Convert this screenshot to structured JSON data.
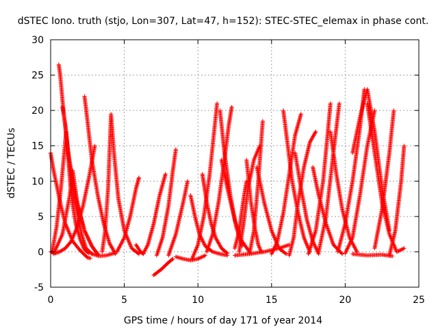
{
  "chart_data": {
    "type": "scatter",
    "title": "dSTEC Iono. truth (stjo, Lon=307, Lat=47, h=152): STEC-STEC_elemax in phase cont.",
    "xlabel": "GPS time / hours of day 171 of year 2014",
    "ylabel": "dSTEC  / TECUs",
    "xlim": [
      0,
      25
    ],
    "ylim": [
      -5,
      30
    ],
    "xticks": [
      0,
      5,
      10,
      15,
      20,
      25
    ],
    "yticks": [
      -5,
      0,
      5,
      10,
      15,
      20,
      25,
      30
    ],
    "grid": true,
    "marker": "+",
    "color": "#ff0000",
    "series": [
      {
        "x": [
          0.0,
          0.2,
          0.45,
          0.7,
          1.0,
          1.5,
          2.0,
          2.5,
          2.7
        ],
        "y": [
          14.0,
          11.5,
          9.0,
          6.5,
          4.0,
          1.5,
          0.2,
          -0.8,
          -0.9
        ]
      },
      {
        "x": [
          0.0,
          0.3,
          0.6,
          1.0,
          1.4,
          1.8,
          2.2,
          2.6,
          3.0
        ],
        "y": [
          0.0,
          -0.2,
          0.0,
          0.5,
          1.5,
          3.5,
          6.5,
          10.5,
          15.0
        ]
      },
      {
        "x": [
          0.55,
          0.65,
          0.8,
          1.0,
          1.25,
          1.5,
          1.8,
          2.1,
          2.4,
          2.8
        ],
        "y": [
          26.5,
          25.0,
          21.5,
          17.5,
          13.0,
          9.0,
          5.5,
          2.5,
          0.5,
          -0.3
        ]
      },
      {
        "x": [
          0.2,
          0.8,
          1.3,
          1.5,
          1.8,
          2.3,
          2.8,
          3.2
        ],
        "y": [
          -0.3,
          2.5,
          8.0,
          11.5,
          7.0,
          3.0,
          0.8,
          -0.4
        ]
      },
      {
        "x": [
          0.8,
          1.0,
          1.2,
          1.5,
          1.9,
          2.3,
          2.8,
          3.2
        ],
        "y": [
          20.5,
          18.0,
          14.0,
          10.0,
          6.0,
          3.0,
          0.8,
          -0.3
        ]
      },
      {
        "x": [
          0.1,
          0.4,
          0.7,
          0.9,
          1.05,
          1.2,
          1.4,
          1.7,
          2.0,
          2.3,
          2.6
        ],
        "y": [
          0.0,
          3.5,
          9.0,
          13.5,
          17.0,
          13.0,
          8.0,
          4.0,
          1.8,
          0.3,
          -0.2
        ]
      },
      {
        "x": [
          2.3,
          2.5,
          2.8,
          3.2,
          3.6,
          4.0,
          4.4
        ],
        "y": [
          22.0,
          18.5,
          13.0,
          8.0,
          4.0,
          1.2,
          -0.3
        ]
      },
      {
        "x": [
          3.5,
          3.7,
          3.9,
          4.1,
          4.3,
          4.6,
          5.0,
          5.5,
          6.0
        ],
        "y": [
          0.0,
          3.0,
          9.0,
          19.5,
          14.0,
          7.5,
          3.0,
          0.5,
          -0.3
        ]
      },
      {
        "x": [
          2.8,
          3.3,
          3.8,
          4.3
        ],
        "y": [
          -0.3,
          -0.6,
          -0.5,
          -0.2
        ]
      },
      {
        "x": [
          4.5,
          5.0,
          5.4,
          5.8,
          6.0
        ],
        "y": [
          0.0,
          2.0,
          5.0,
          9.0,
          10.5
        ]
      },
      {
        "x": [
          5.8,
          6.1,
          6.3
        ],
        "y": [
          1.0,
          0.0,
          -0.3
        ]
      },
      {
        "x": [
          6.3,
          6.6,
          7.0,
          7.4,
          7.8
        ],
        "y": [
          -0.2,
          1.0,
          4.0,
          8.0,
          11.0
        ]
      },
      {
        "x": [
          7.0,
          7.5,
          8.0,
          8.3
        ],
        "y": [
          -3.3,
          -2.5,
          -1.5,
          -1.0
        ]
      },
      {
        "x": [
          7.2,
          7.6,
          8.0,
          8.3,
          8.5
        ],
        "y": [
          -0.5,
          2.0,
          6.5,
          11.5,
          14.5
        ]
      },
      {
        "x": [
          8.0,
          8.5,
          9.0,
          9.3
        ],
        "y": [
          -0.5,
          2.5,
          7.0,
          10.0
        ]
      },
      {
        "x": [
          8.5,
          9.0,
          9.5,
          10.0,
          10.5
        ],
        "y": [
          -0.7,
          -1.0,
          -1.2,
          -1.0,
          -0.5
        ]
      },
      {
        "x": [
          9.5,
          9.8,
          10.1,
          10.5,
          11.0,
          11.5,
          12.0
        ],
        "y": [
          8.0,
          5.0,
          2.5,
          0.8,
          0.0,
          -0.3,
          -0.5
        ]
      },
      {
        "x": [
          9.6,
          10.0,
          10.4,
          10.8,
          11.1,
          11.3
        ],
        "y": [
          -1.0,
          1.0,
          5.0,
          11.0,
          17.0,
          21.0
        ]
      },
      {
        "x": [
          10.3,
          10.6,
          10.9,
          11.2,
          11.6,
          12.0
        ],
        "y": [
          11.0,
          7.0,
          4.0,
          2.0,
          0.5,
          -0.2
        ]
      },
      {
        "x": [
          10.6,
          11.0,
          11.4,
          11.8,
          12.1,
          12.3
        ],
        "y": [
          0.0,
          2.5,
          7.0,
          13.0,
          18.0,
          20.5
        ]
      },
      {
        "x": [
          11.5,
          11.8,
          12.2,
          12.6,
          13.0
        ],
        "y": [
          20.0,
          14.0,
          8.0,
          3.5,
          0.8
        ]
      },
      {
        "x": [
          11.6,
          12.0,
          12.5,
          13.0,
          13.5
        ],
        "y": [
          13.0,
          9.0,
          4.5,
          1.5,
          0.0
        ]
      },
      {
        "x": [
          12.5,
          12.8,
          13.1,
          13.3
        ],
        "y": [
          0.5,
          3.0,
          7.5,
          10.0
        ]
      },
      {
        "x": [
          12.8,
          13.1,
          13.4,
          13.8,
          14.2
        ],
        "y": [
          0.0,
          4.0,
          9.0,
          13.0,
          15.0
        ]
      },
      {
        "x": [
          13.3,
          13.6,
          13.9,
          14.1,
          14.3
        ],
        "y": [
          13.0,
          7.0,
          3.0,
          1.0,
          0.0
        ]
      },
      {
        "x": [
          13.5,
          13.8,
          14.1,
          14.4
        ],
        "y": [
          -0.3,
          3.0,
          10.0,
          18.5
        ]
      },
      {
        "x": [
          14.0,
          14.5,
          15.0,
          15.5,
          16.0
        ],
        "y": [
          12.0,
          7.0,
          3.0,
          0.5,
          -0.3
        ]
      },
      {
        "x": [
          12.5,
          13.5,
          14.5,
          15.5,
          16.2
        ],
        "y": [
          -0.5,
          -0.3,
          0.0,
          0.5,
          1.0
        ]
      },
      {
        "x": [
          15.0,
          15.4,
          15.8,
          16.2,
          16.6,
          17.0
        ],
        "y": [
          -0.3,
          1.5,
          5.5,
          11.0,
          16.5,
          19.5
        ]
      },
      {
        "x": [
          15.8,
          16.1,
          16.4,
          16.8,
          17.2,
          17.6
        ],
        "y": [
          20.0,
          15.0,
          10.0,
          5.5,
          2.0,
          0.0
        ]
      },
      {
        "x": [
          16.2,
          16.5,
          16.8,
          17.2,
          17.6,
          18.0
        ],
        "y": [
          -0.5,
          2.0,
          7.0,
          12.0,
          15.5,
          17.0
        ]
      },
      {
        "x": [
          16.6,
          17.0,
          17.4,
          17.8,
          18.2
        ],
        "y": [
          14.0,
          9.0,
          4.5,
          1.5,
          -0.3
        ]
      },
      {
        "x": [
          17.5,
          18.0,
          18.5,
          18.8,
          19.0
        ],
        "y": [
          -0.3,
          3.0,
          10.0,
          16.5,
          21.0
        ]
      },
      {
        "x": [
          17.8,
          18.2,
          18.7,
          19.2,
          19.8
        ],
        "y": [
          12.0,
          8.0,
          4.0,
          1.0,
          -0.3
        ]
      },
      {
        "x": [
          18.2,
          18.7,
          19.2,
          19.6
        ],
        "y": [
          0.0,
          5.0,
          14.0,
          21.0
        ]
      },
      {
        "x": [
          19.0,
          19.4,
          19.8,
          20.3,
          20.8
        ],
        "y": [
          17.0,
          11.0,
          6.0,
          2.0,
          0.0
        ]
      },
      {
        "x": [
          19.5,
          20.0,
          20.5,
          21.0,
          21.3
        ],
        "y": [
          0.0,
          4.0,
          10.0,
          17.5,
          23.0
        ]
      },
      {
        "x": [
          20.5,
          21.0,
          21.5,
          22.0,
          22.5,
          23.0
        ],
        "y": [
          14.0,
          19.0,
          23.0,
          17.0,
          9.0,
          3.0
        ]
      },
      {
        "x": [
          20.0,
          20.5,
          21.0,
          21.5,
          22.0
        ],
        "y": [
          -0.2,
          2.0,
          8.0,
          15.0,
          20.0
        ]
      },
      {
        "x": [
          21.5,
          22.0,
          22.5,
          23.0,
          23.5,
          24.0
        ],
        "y": [
          21.0,
          14.0,
          7.0,
          2.5,
          0.0,
          0.5
        ]
      },
      {
        "x": [
          22.0,
          22.5,
          23.0,
          23.3
        ],
        "y": [
          0.5,
          6.0,
          14.0,
          20.0
        ]
      },
      {
        "x": [
          23.0,
          23.4,
          23.8,
          24.0
        ],
        "y": [
          -0.5,
          3.0,
          10.0,
          15.0
        ]
      },
      {
        "x": [
          20.5,
          21.5,
          22.5,
          23.2
        ],
        "y": [
          -0.3,
          -0.5,
          -0.4,
          -0.6
        ]
      }
    ]
  }
}
